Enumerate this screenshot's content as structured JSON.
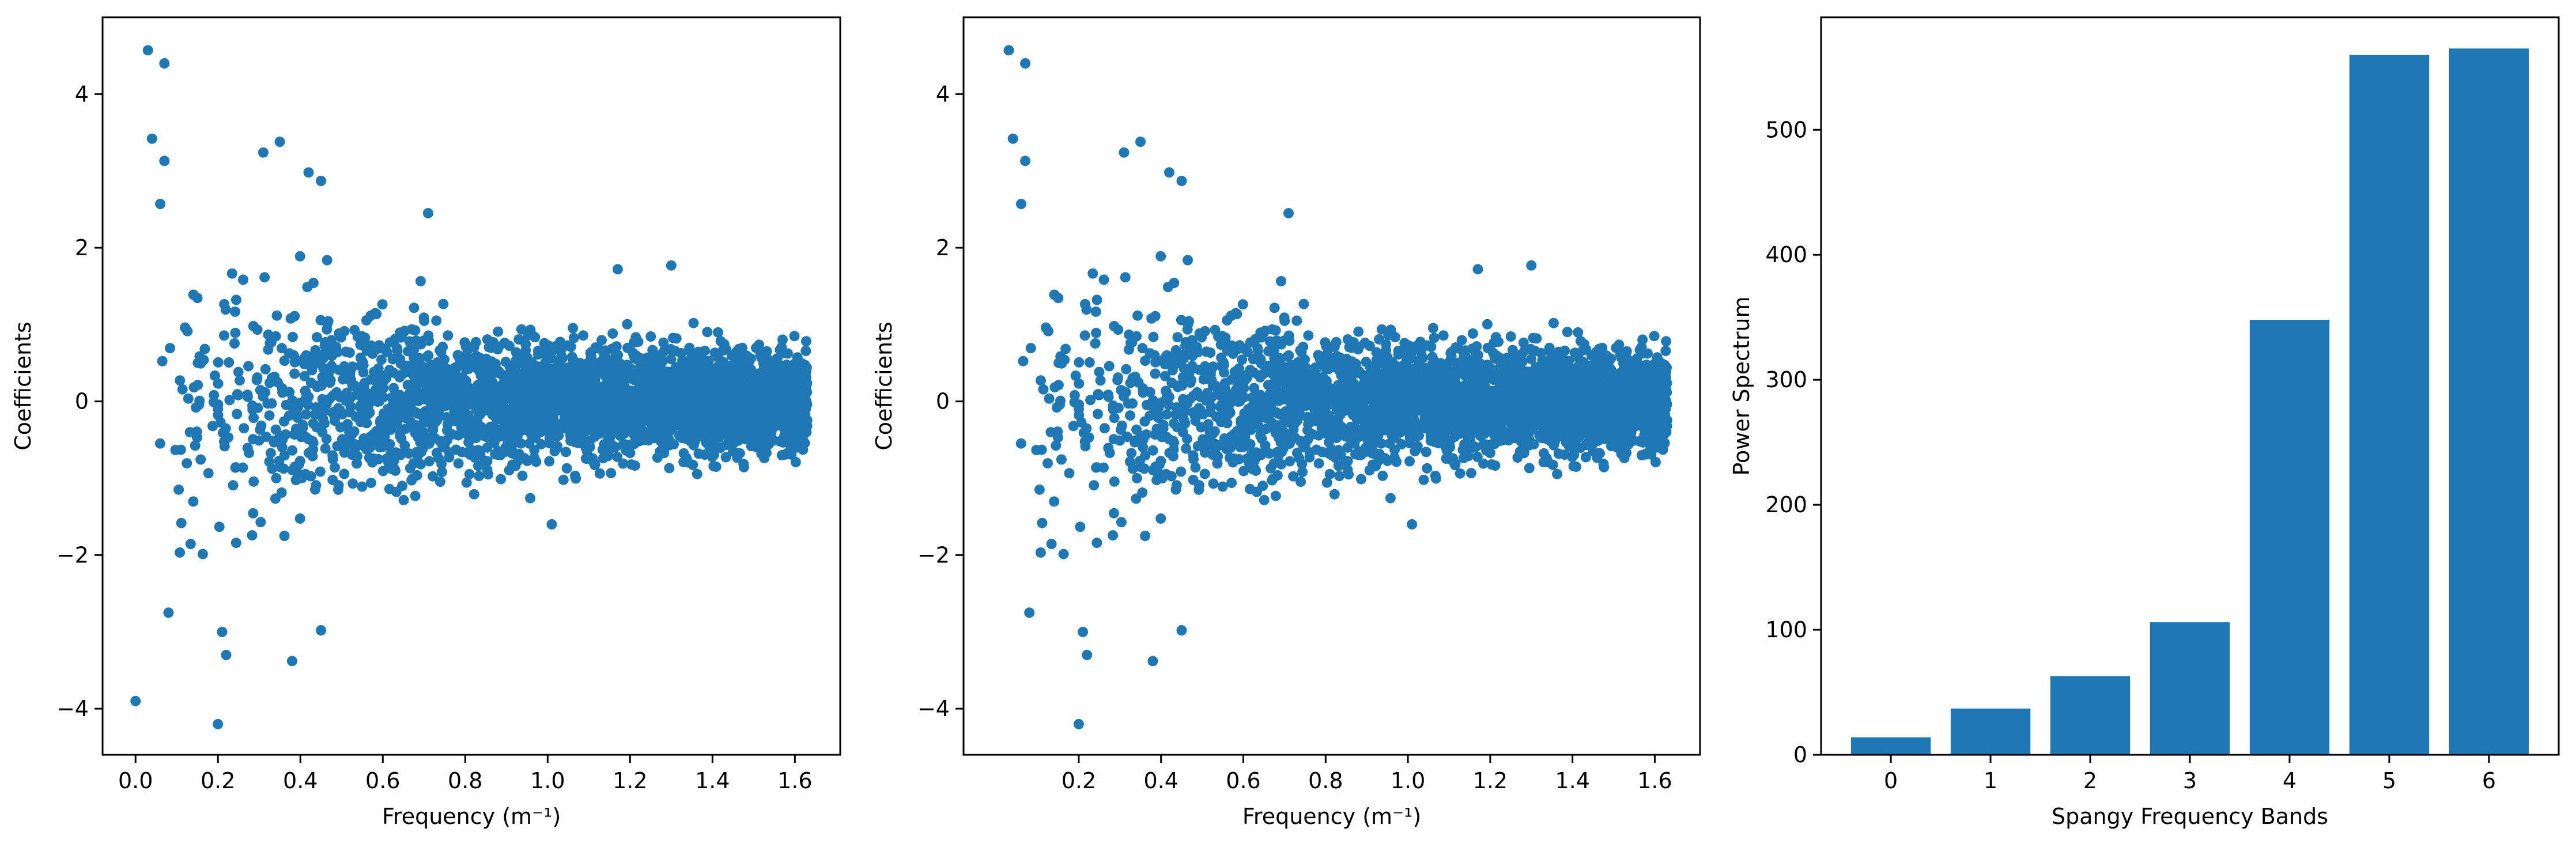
{
  "colors": {
    "accent": "#1f77b4",
    "axes": "#000000",
    "background": "#ffffff"
  },
  "chart_data": [
    {
      "type": "scatter",
      "title": "",
      "xlabel": "Frequency (m⁻¹)",
      "ylabel": "Coefficients",
      "xlim": [
        -0.08,
        1.71
      ],
      "ylim": [
        -4.6,
        5.0
      ],
      "xticks": [
        0.0,
        0.2,
        0.4,
        0.6,
        0.8,
        1.0,
        1.2,
        1.4,
        1.6
      ],
      "xtick_labels": [
        "0.0",
        "0.2",
        "0.4",
        "0.6",
        "0.8",
        "1.0",
        "1.2",
        "1.4",
        "1.6"
      ],
      "yticks": [
        -4,
        -2,
        0,
        2,
        4
      ],
      "ytick_labels": [
        "−4",
        "−2",
        "0",
        "2",
        "4"
      ],
      "grid": false,
      "series": [
        {
          "color": "#1f77b4",
          "description": "dense point cloud centered at 0; spread narrows with frequency from about ±2.5 at low frequency to about ±0.9 near 1.6",
          "notable_points": [
            {
              "x": 0.03,
              "y": 4.57
            },
            {
              "x": 0.07,
              "y": 4.4
            },
            {
              "x": 0.04,
              "y": 3.42
            },
            {
              "x": 0.07,
              "y": 3.13
            },
            {
              "x": 0.06,
              "y": 2.57
            },
            {
              "x": 0.31,
              "y": 3.24
            },
            {
              "x": 0.35,
              "y": 3.38
            },
            {
              "x": 0.42,
              "y": 2.98
            },
            {
              "x": 0.45,
              "y": 2.87
            },
            {
              "x": 0.71,
              "y": 2.45
            },
            {
              "x": 1.3,
              "y": 1.77
            },
            {
              "x": 1.17,
              "y": 1.72
            },
            {
              "x": 0.08,
              "y": -2.75
            },
            {
              "x": 0.21,
              "y": -3.0
            },
            {
              "x": 0.22,
              "y": -3.3
            },
            {
              "x": 0.38,
              "y": -3.38
            },
            {
              "x": 0.45,
              "y": -2.98
            },
            {
              "x": 0.0,
              "y": -3.9
            },
            {
              "x": 0.2,
              "y": -4.2
            },
            {
              "x": 1.01,
              "y": -1.6
            }
          ]
        }
      ]
    },
    {
      "type": "scatter",
      "title": "",
      "xlabel": "Frequency (m⁻¹)",
      "ylabel": "Coefficients",
      "xlim": [
        -0.08,
        1.71
      ],
      "ylim": [
        -4.6,
        5.0
      ],
      "xticks": [
        0.2,
        0.4,
        0.6,
        0.8,
        1.0,
        1.2,
        1.4,
        1.6
      ],
      "xtick_labels": [
        "0.2",
        "0.4",
        "0.6",
        "0.8",
        "1.0",
        "1.2",
        "1.4",
        "1.6"
      ],
      "yticks": [
        -4,
        -2,
        0,
        2,
        4
      ],
      "ytick_labels": [
        "−4",
        "−2",
        "0",
        "2",
        "4"
      ],
      "grid": false,
      "series": [
        {
          "color": "#1f77b4",
          "description": "same point cloud as left panel; the point at frequency 0 is absent",
          "notable_points": [
            {
              "x": 0.03,
              "y": 4.57
            },
            {
              "x": 0.07,
              "y": 4.4
            },
            {
              "x": 0.04,
              "y": 3.42
            },
            {
              "x": 0.07,
              "y": 3.13
            },
            {
              "x": 0.06,
              "y": 2.57
            },
            {
              "x": 0.31,
              "y": 3.24
            },
            {
              "x": 0.35,
              "y": 3.38
            },
            {
              "x": 0.42,
              "y": 2.98
            },
            {
              "x": 0.45,
              "y": 2.87
            },
            {
              "x": 0.71,
              "y": 2.45
            },
            {
              "x": 1.3,
              "y": 1.77
            },
            {
              "x": 1.17,
              "y": 1.72
            },
            {
              "x": 0.08,
              "y": -2.75
            },
            {
              "x": 0.21,
              "y": -3.0
            },
            {
              "x": 0.22,
              "y": -3.3
            },
            {
              "x": 0.38,
              "y": -3.38
            },
            {
              "x": 0.45,
              "y": -2.98
            },
            {
              "x": 0.2,
              "y": -4.2
            },
            {
              "x": 1.01,
              "y": -1.6
            }
          ]
        }
      ]
    },
    {
      "type": "bar",
      "title": "",
      "xlabel": "Spangy Frequency Bands",
      "ylabel": "Power Spectrum",
      "categories": [
        "0",
        "1",
        "2",
        "3",
        "4",
        "5",
        "6"
      ],
      "values": [
        14,
        37,
        63,
        106,
        348,
        560,
        565
      ],
      "ylim": [
        0,
        590
      ],
      "yticks": [
        0,
        100,
        200,
        300,
        400,
        500
      ],
      "ytick_labels": [
        "0",
        "100",
        "200",
        "300",
        "400",
        "500"
      ],
      "grid": false,
      "color": "#1f77b4"
    }
  ]
}
